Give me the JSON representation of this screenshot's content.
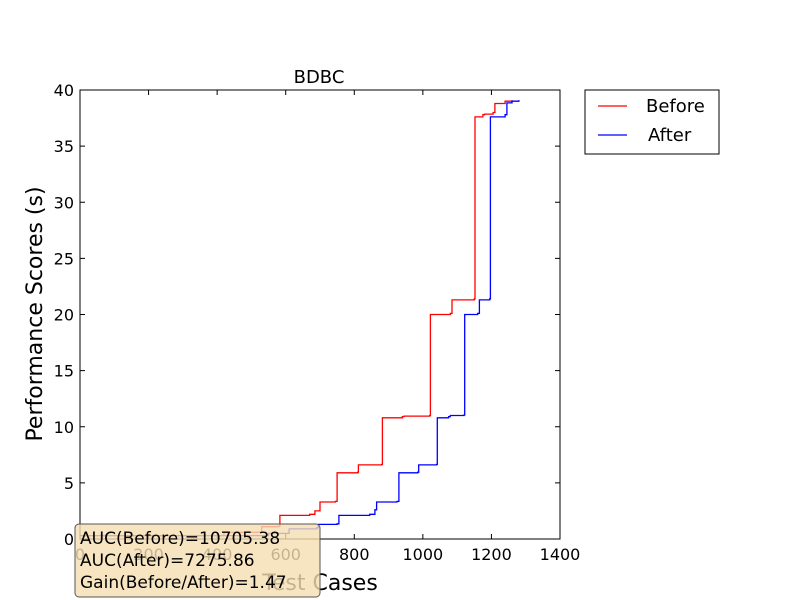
{
  "chart_data": {
    "type": "line",
    "title": "BDBC",
    "xlabel": "Test Cases",
    "ylabel": "Performance Scores (s)",
    "xlim": [
      0,
      1400
    ],
    "ylim": [
      0,
      40
    ],
    "xticks": [
      "0",
      "200",
      "400",
      "600",
      "800",
      "1000",
      "1200",
      "1400"
    ],
    "yticks": [
      "0",
      "5",
      "10",
      "15",
      "20",
      "25",
      "30",
      "35",
      "40"
    ],
    "legend_position": "outside-top-right",
    "grid": false,
    "series": [
      {
        "name": "Before",
        "color": "#ff0000",
        "points": [
          [
            0,
            0.3
          ],
          [
            420,
            0.6
          ],
          [
            530,
            1.1
          ],
          [
            580,
            1.15
          ],
          [
            583,
            2.1
          ],
          [
            670,
            2.2
          ],
          [
            685,
            2.5
          ],
          [
            700,
            3.3
          ],
          [
            745,
            3.35
          ],
          [
            750,
            5.9
          ],
          [
            810,
            5.95
          ],
          [
            812,
            6.6
          ],
          [
            880,
            6.65
          ],
          [
            882,
            10.8
          ],
          [
            940,
            10.9
          ],
          [
            945,
            10.95
          ],
          [
            1020,
            11.0
          ],
          [
            1022,
            20.0
          ],
          [
            1080,
            20.1
          ],
          [
            1085,
            21.3
          ],
          [
            1150,
            21.4
          ],
          [
            1152,
            37.6
          ],
          [
            1175,
            37.8
          ],
          [
            1180,
            37.85
          ],
          [
            1205,
            38.0
          ],
          [
            1210,
            38.8
          ],
          [
            1240,
            39.0
          ],
          [
            1260,
            39.1
          ]
        ]
      },
      {
        "name": "After",
        "color": "#0000ff",
        "points": [
          [
            0,
            0.3
          ],
          [
            550,
            0.5
          ],
          [
            610,
            0.9
          ],
          [
            690,
            1.0
          ],
          [
            695,
            1.3
          ],
          [
            750,
            1.35
          ],
          [
            755,
            2.1
          ],
          [
            845,
            2.2
          ],
          [
            860,
            2.6
          ],
          [
            865,
            3.3
          ],
          [
            925,
            3.35
          ],
          [
            930,
            5.9
          ],
          [
            985,
            5.95
          ],
          [
            988,
            6.6
          ],
          [
            1040,
            6.65
          ],
          [
            1042,
            10.8
          ],
          [
            1075,
            10.9
          ],
          [
            1080,
            11.0
          ],
          [
            1120,
            11.05
          ],
          [
            1122,
            20.0
          ],
          [
            1160,
            20.1
          ],
          [
            1165,
            21.3
          ],
          [
            1195,
            21.4
          ],
          [
            1197,
            37.6
          ],
          [
            1240,
            37.8
          ],
          [
            1245,
            38.85
          ],
          [
            1260,
            39.0
          ],
          [
            1280,
            39.1
          ]
        ]
      }
    ],
    "annotation": [
      "AUC(Before)=10705.38",
      "AUC(After)=7275.86",
      "Gain(Before/After)=1.47"
    ],
    "annotation_bg": "#f5deb3"
  }
}
